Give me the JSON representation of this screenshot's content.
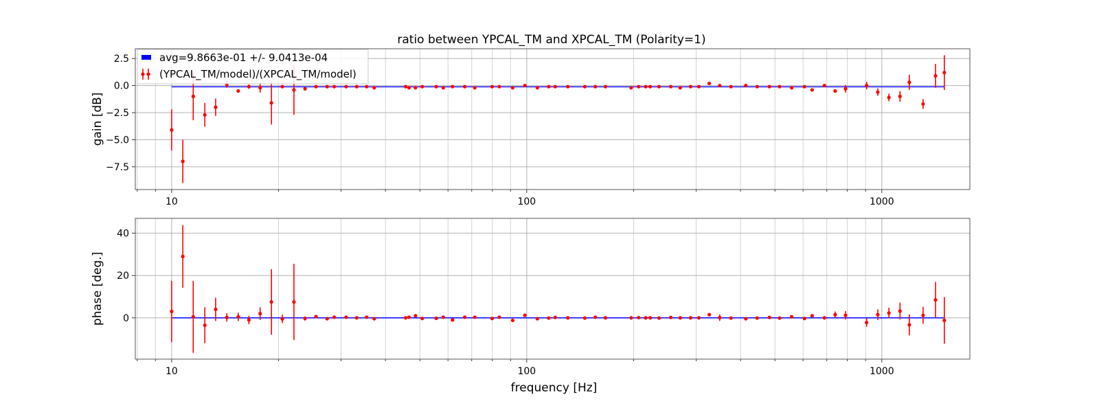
{
  "chart_data": [
    {
      "type": "scatter",
      "title": "ratio between YPCAL_TM and XPCAL_TM (Polarity=1)",
      "ylabel": "gain [dB]",
      "xlabel": "",
      "xscale": "log",
      "xlim": [
        7.9,
        1770
      ],
      "ylim": [
        -9.6,
        3.4
      ],
      "yticks": [
        2.5,
        0.0,
        -2.5,
        -5.0,
        -7.5
      ],
      "ytick_labels": [
        "2.5",
        "0.0",
        "−2.5",
        "−5.0",
        "−7.5"
      ],
      "xticks": [
        10,
        100,
        1000
      ],
      "xtick_labels": [
        "10",
        "100",
        "1000"
      ],
      "grid": true,
      "legend_position": "top-left",
      "avg_line": {
        "name": "avg=9.8663e-01 +/- 9.0413e-04",
        "y": -0.117,
        "x_range": [
          10,
          1500
        ],
        "color": "#0000ff"
      },
      "series": [
        {
          "name": "(YPCAL_TM/model)/(XPCAL_TM/model)",
          "color": "#ff0000",
          "x": [
            10,
            10.75,
            11.5,
            12.4,
            13.3,
            14.3,
            15.4,
            16.5,
            17.75,
            19.1,
            20.5,
            22.1,
            23.75,
            25.5,
            27.4,
            28.7,
            31,
            33.2,
            35.4,
            37.2,
            45.6,
            46.6,
            48.6,
            50.8,
            55.6,
            58.2,
            61.8,
            66.9,
            71.4,
            79.9,
            83.7,
            91.3,
            98.8,
            107.1,
            115.3,
            120.3,
            130.5,
            145.7,
            156,
            166.6,
            196.8,
            206.6,
            216.3,
            222.7,
            235.8,
            254.4,
            270.6,
            289.3,
            305.3,
            326.5,
            349.5,
            376,
            413.9,
            445.6,
            482.5,
            515.1,
            557.2,
            605.6,
            636.5,
            689.4,
            738.9,
            790.3,
            906.1,
            974.4,
            1047.1,
            1125.2,
            1195.3,
            1306.8,
            1416.7,
            1500
          ],
          "y": [
            -4.1,
            -7.0,
            -1.0,
            -2.7,
            -2.0,
            0.1,
            -0.5,
            -0.1,
            -0.2,
            -1.6,
            -0.1,
            -0.4,
            -0.3,
            -0.1,
            -0.1,
            -0.1,
            -0.1,
            -0.1,
            -0.1,
            -0.2,
            -0.1,
            -0.2,
            -0.2,
            -0.1,
            -0.1,
            -0.2,
            -0.1,
            -0.1,
            -0.2,
            -0.1,
            -0.1,
            -0.2,
            0.0,
            -0.2,
            -0.1,
            -0.1,
            -0.1,
            -0.1,
            -0.1,
            -0.1,
            -0.2,
            -0.1,
            -0.1,
            -0.1,
            -0.1,
            -0.1,
            -0.2,
            -0.1,
            -0.1,
            0.2,
            0.0,
            -0.1,
            0.0,
            -0.1,
            -0.1,
            -0.1,
            -0.2,
            -0.1,
            -0.4,
            0.0,
            -0.5,
            -0.3,
            0.0,
            -0.6,
            -1.1,
            -1.0,
            0.3,
            -1.7,
            0.9,
            1.2
          ],
          "yerr": [
            1.9,
            2.0,
            2.2,
            1.1,
            0.8,
            0.3,
            0.15,
            0.2,
            0.45,
            2.0,
            0.1,
            2.3,
            0.1,
            0.1,
            0.1,
            0.1,
            0.1,
            0.1,
            0.1,
            0.1,
            0.1,
            0.1,
            0.1,
            0.1,
            0.1,
            0.1,
            0.1,
            0.1,
            0.1,
            0.1,
            0.1,
            0.1,
            0.1,
            0.1,
            0.1,
            0.1,
            0.1,
            0.1,
            0.1,
            0.1,
            0.1,
            0.1,
            0.1,
            0.1,
            0.1,
            0.1,
            0.1,
            0.1,
            0.1,
            0.15,
            0.1,
            0.1,
            0.1,
            0.1,
            0.1,
            0.1,
            0.1,
            0.1,
            0.1,
            0.1,
            0.1,
            0.35,
            0.35,
            0.35,
            0.35,
            0.5,
            0.7,
            0.45,
            1.1,
            1.6
          ]
        }
      ]
    },
    {
      "type": "scatter",
      "title": "",
      "ylabel": "phase [deg.]",
      "xlabel": "frequency [Hz]",
      "xscale": "log",
      "xlim": [
        7.9,
        1770
      ],
      "ylim": [
        -19.5,
        47
      ],
      "yticks": [
        40,
        20,
        0
      ],
      "ytick_labels": [
        "40",
        "20",
        "0"
      ],
      "xticks": [
        10,
        100,
        1000
      ],
      "xtick_labels": [
        "10",
        "100",
        "1000"
      ],
      "grid": true,
      "avg_line": {
        "y": 0,
        "x_range": [
          10,
          1500
        ],
        "color": "#0000ff"
      },
      "series": [
        {
          "name": "(YPCAL_TM/model)/(XPCAL_TM/model)",
          "color": "#ff0000",
          "x": [
            10,
            10.75,
            11.5,
            12.4,
            13.3,
            14.3,
            15.4,
            16.5,
            17.75,
            19.1,
            20.5,
            22.1,
            23.75,
            25.5,
            27.4,
            28.7,
            31,
            33.2,
            35.4,
            37.2,
            45.6,
            46.6,
            48.6,
            50.8,
            55.6,
            58.2,
            61.8,
            66.9,
            71.4,
            79.9,
            83.7,
            91.3,
            98.8,
            107.1,
            115.3,
            120.3,
            130.5,
            145.7,
            156,
            166.6,
            196.8,
            206.6,
            216.3,
            222.7,
            235.8,
            254.4,
            270.6,
            289.3,
            305.3,
            326.5,
            349.5,
            376,
            413.9,
            445.6,
            482.5,
            515.1,
            557.2,
            605.6,
            636.5,
            689.4,
            738.9,
            790.3,
            906.1,
            974.4,
            1047.1,
            1125.2,
            1195.3,
            1306.8,
            1416.7,
            1500
          ],
          "y": [
            3,
            29,
            0.5,
            -3.5,
            4,
            0.2,
            0.5,
            -1,
            2,
            7.5,
            -0.5,
            7.5,
            -0.3,
            0.6,
            -0.4,
            0.3,
            0.3,
            0,
            0.3,
            -0.4,
            0,
            0.3,
            1,
            -0.3,
            -0.2,
            0.3,
            -1,
            0.3,
            0.3,
            -0.3,
            0.3,
            -1.2,
            1.2,
            -0.4,
            -0.1,
            0.2,
            0,
            -0.1,
            0.3,
            0,
            0,
            0.1,
            0,
            0,
            -0.1,
            0.2,
            0,
            0,
            0,
            1.5,
            0.1,
            -0.1,
            -0.4,
            -0.1,
            0.2,
            -0.1,
            0.5,
            -0.3,
            1,
            0,
            1.5,
            1.2,
            -2.2,
            1.5,
            2.3,
            3.2,
            -3.3,
            1.2,
            8.5,
            -1.2
          ],
          "yerr": [
            14.5,
            14.8,
            17,
            8.5,
            5.5,
            2,
            2,
            2,
            3,
            15.5,
            2,
            18,
            1,
            0.5,
            0.5,
            0.5,
            0.5,
            0.5,
            0.5,
            0.5,
            0.5,
            0.5,
            0.5,
            0.5,
            0.5,
            0.5,
            0.5,
            0.5,
            0.5,
            0.5,
            0.5,
            0.5,
            0.5,
            0.5,
            0.5,
            0.5,
            0.5,
            0.5,
            0.5,
            0.5,
            0.5,
            0.5,
            0.5,
            0.5,
            0.5,
            0.5,
            0.5,
            0.5,
            0.5,
            0.8,
            1.5,
            0.5,
            0.5,
            0.5,
            0.5,
            0.5,
            0.5,
            0.5,
            0.5,
            0.5,
            1.5,
            2,
            2,
            2.5,
            2.5,
            4,
            5,
            4,
            8.5,
            11
          ]
        }
      ]
    }
  ]
}
